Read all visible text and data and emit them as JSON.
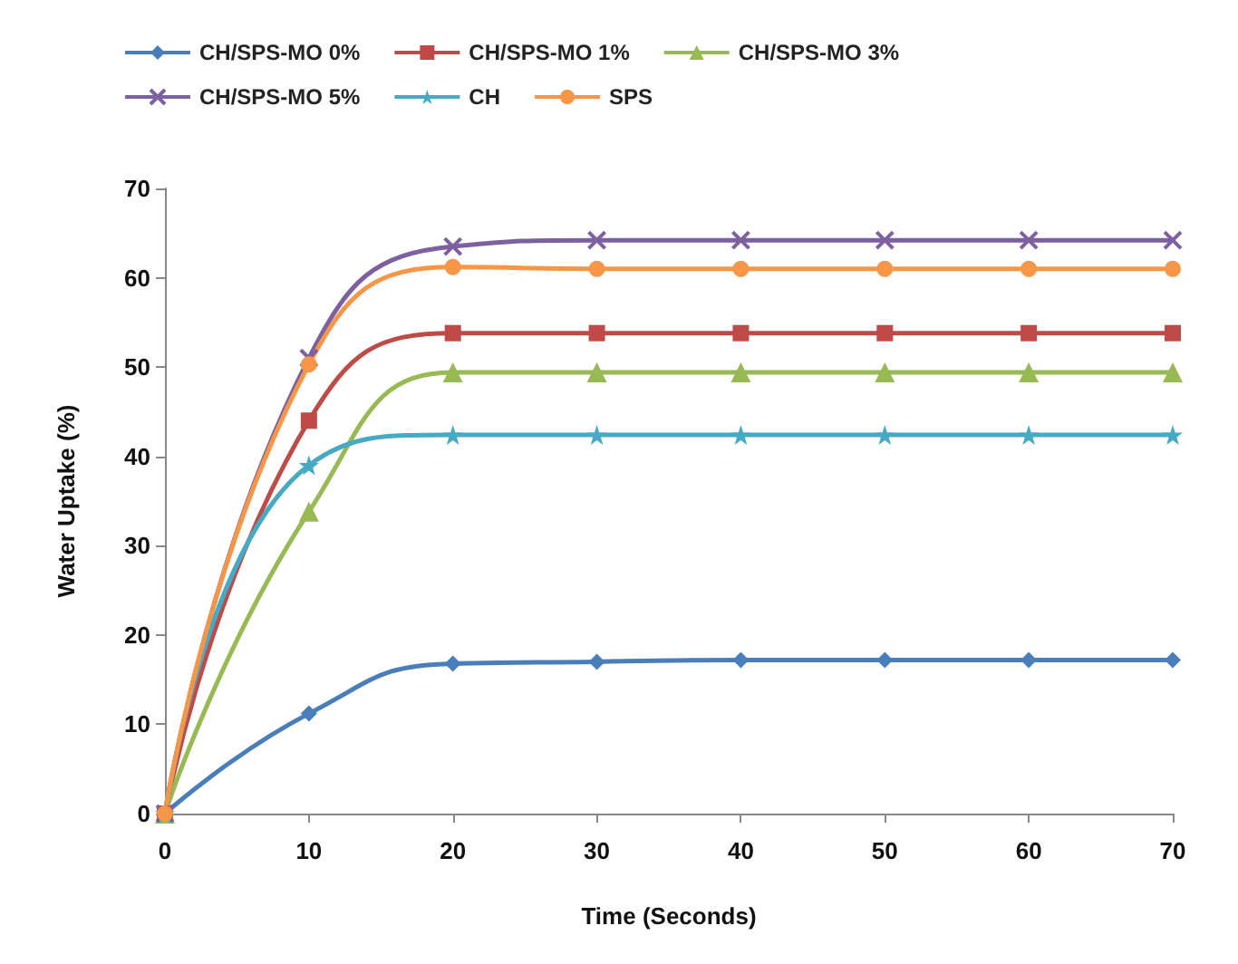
{
  "chart_data": {
    "type": "line",
    "xlabel": "Time (Seconds)",
    "ylabel": "Water Uptake (%)",
    "x": [
      0,
      10,
      20,
      30,
      40,
      50,
      60,
      70
    ],
    "series": [
      {
        "name": "CH/SPS-MO 0%",
        "color": "#4a7ebb",
        "marker": "diamond",
        "values": [
          0,
          11.2,
          16.8,
          17,
          17.2,
          17.2,
          17.2,
          17.2
        ]
      },
      {
        "name": "CH/SPS-MO 1%",
        "color": "#be4b48",
        "marker": "square",
        "values": [
          0,
          44,
          53.8,
          53.8,
          53.8,
          53.8,
          53.8,
          53.8
        ]
      },
      {
        "name": "CH/SPS-MO 3%",
        "color": "#98b954",
        "marker": "triangle",
        "values": [
          0,
          33.8,
          49.4,
          49.4,
          49.4,
          49.4,
          49.4,
          49.4
        ]
      },
      {
        "name": "CH/SPS-MO 5%",
        "color": "#7d60a0",
        "marker": "cross",
        "values": [
          0,
          51,
          63.5,
          64.2,
          64.2,
          64.2,
          64.2,
          64.2
        ]
      },
      {
        "name": "CH",
        "color": "#46aac5",
        "marker": "star",
        "values": [
          0,
          39,
          42.4,
          42.4,
          42.4,
          42.4,
          42.4,
          42.4
        ]
      },
      {
        "name": "SPS",
        "color": "#f79646",
        "marker": "circle",
        "values": [
          0,
          50.3,
          61.2,
          61,
          61,
          61,
          61,
          61
        ]
      }
    ],
    "xlim": [
      0,
      70
    ],
    "xticks": [
      0,
      10,
      20,
      30,
      40,
      50,
      60,
      70
    ],
    "ylim": [
      0,
      70
    ],
    "yticks": [
      0,
      10,
      20,
      30,
      40,
      50,
      60,
      70
    ],
    "grid": false,
    "legend": "top"
  }
}
